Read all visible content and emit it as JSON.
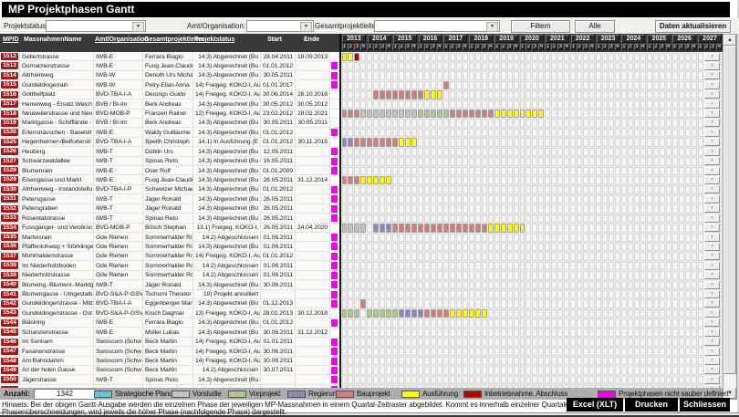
{
  "window": {
    "title": "MP Projektphasen Gantt"
  },
  "filters": {
    "projektstatus_label": "Projektstatus:",
    "amt_label": "Amt/Organisation:",
    "leiter_label": "Gesamtprojektleiter:",
    "projektstatus_value": "",
    "amt_value": "",
    "leiter_value": "",
    "filtern_button": "Filtern",
    "alle_button": "Alle",
    "refresh_button": "Daten aktualisieren"
  },
  "table": {
    "columns": [
      "MPID",
      "MassnahmenName",
      "Amt/Organisation",
      "Gesamtprojektleiter",
      "Projektstatus",
      "Start",
      "Ende"
    ],
    "rows": [
      {
        "id": "1512",
        "name": "Gellertstrasse",
        "org": "IWB-E",
        "leiter": "Ferrara Biagio",
        "status": "14.3) Abgerechnet (Bu",
        "start": "28.04.2011",
        "ende": "18.09.2013",
        "marker": false,
        "segments": [
          [
            "ausfuehrung",
            0,
            1
          ],
          [
            "inbetriebnahme",
            2,
            2
          ]
        ]
      },
      {
        "id": "1513",
        "name": "Dornacherstrasse",
        "org": "IWB-E",
        "leiter": "Fuog Jean-Claude",
        "status": "14.3) Abgerechnet (Bu",
        "start": "01.01.2012",
        "ende": "",
        "marker": true,
        "segments": []
      },
      {
        "id": "1514",
        "name": "Altrheinweg",
        "org": "IWB-W",
        "leiter": "Denoth Urs Michael",
        "status": "14.3) Abgerechnet (Bu",
        "start": "30.05.2011",
        "ende": "",
        "marker": true,
        "segments": []
      },
      {
        "id": "1515",
        "name": "Gundeldingerrain",
        "org": "IWB-W",
        "leiter": "Petry-Elias Anna",
        "status": "14) Freigeg. KOKO-I, Au",
        "start": "01.01.2017",
        "ende": "",
        "marker": true,
        "segments": [
          [
            "bauprojekt",
            16,
            16
          ]
        ]
      },
      {
        "id": "1516",
        "name": "Gotthelfplatz",
        "org": "BVD-TBA-I-A",
        "leiter": "Derungs Guido",
        "status": "14) Freigeg. KOKO-I, Au",
        "start": "30.06.2014",
        "ende": "28.10.2016",
        "marker": false,
        "segments": [
          [
            "bauprojekt",
            5,
            12
          ],
          [
            "ausfuehrung",
            13,
            15
          ]
        ]
      },
      {
        "id": "1517",
        "name": "Herrenweg - Ersatz Weich",
        "org": "BVB / BI-Im",
        "leiter": "Berk Andreas",
        "status": "14.3) Abgerechnet (Bu",
        "start": "30.05.2012",
        "ende": "30.05.2012",
        "marker": false,
        "segments": []
      },
      {
        "id": "1518",
        "name": "Neuweilerstrasse und Neu",
        "org": "BVD-MOB-P",
        "leiter": "Franzen Rainer",
        "status": "12) Freigeg. KOKO-I, Au",
        "start": "23.02.2012",
        "ende": "28.02.2021",
        "marker": false,
        "segments": [
          [
            "bauprojekt",
            0,
            2
          ],
          [
            "vorstudie",
            3,
            11
          ],
          [
            "vorprojekt",
            12,
            16
          ],
          [
            "bauprojekt",
            17,
            23
          ],
          [
            "ausfuehrung",
            24,
            31
          ]
        ]
      },
      {
        "id": "1519",
        "name": "Marktgasse - Schifflände -",
        "org": "BVB / BI-Im",
        "leiter": "Berk Andreas",
        "status": "14.3) Abgerechnet (Bu",
        "start": "30.05.2011",
        "ende": "30.05.2011",
        "marker": false,
        "segments": []
      },
      {
        "id": "1520",
        "name": "Erlensträsschen - Baselstr",
        "org": "IWB-E",
        "leiter": "Waldy Guillaume",
        "status": "14.3) Abgerechnet (Bu",
        "start": "01.01.2012",
        "ende": "",
        "marker": true,
        "segments": []
      },
      {
        "id": "1525",
        "name": "Hegenheimer-/Belforterstr",
        "org": "BVD-TBA-I-A",
        "leiter": "Speith Christoph",
        "status": "14.1) In Ausführung (E",
        "start": "01.01.2012",
        "ende": "30.11.2015",
        "marker": false,
        "segments": [
          [
            "regierung",
            0,
            1
          ],
          [
            "bauprojekt",
            2,
            8
          ],
          [
            "ausfuehrung",
            9,
            11
          ]
        ]
      },
      {
        "id": "1526",
        "name": "Heuberg",
        "org": "IWB-T",
        "leiter": "Düblin Urs",
        "status": "14.3) Abgerechnet (Bu",
        "start": "12.05.2011",
        "ende": "",
        "marker": true,
        "segments": []
      },
      {
        "id": "1527",
        "name": "Schwarzwaldallee",
        "org": "IWB-T",
        "leiter": "Spinas Reto",
        "status": "14.3) Abgerechnet (Bu",
        "start": "16.05.2011",
        "ende": "",
        "marker": true,
        "segments": []
      },
      {
        "id": "1528",
        "name": "Blumenrain",
        "org": "IWB-E",
        "leiter": "Oser Rolf",
        "status": "14.3) Abgerechnet (Bu",
        "start": "01.01.2009",
        "ende": "",
        "marker": true,
        "segments": []
      },
      {
        "id": "1529",
        "name": "Eisengasse und Markt",
        "org": "IWB-E",
        "leiter": "Fuog Jean-Claude",
        "status": "14.3) Abgerechnet (Bu",
        "start": "26.05.2011",
        "ende": "31.12.2014",
        "marker": false,
        "segments": [
          [
            "bauprojekt",
            0,
            2
          ],
          [
            "ausfuehrung",
            3,
            7
          ]
        ]
      },
      {
        "id": "1530",
        "name": "Altrheinweg - Instandstellu",
        "org": "BVD-TBA-I-P",
        "leiter": "Schweizer Michael",
        "status": "14.3) Abgerechnet (Bu",
        "start": "01.01.2012",
        "ende": "",
        "marker": true,
        "segments": []
      },
      {
        "id": "1531",
        "name": "Petersgasse",
        "org": "IWB-T",
        "leiter": "Jäger Ronald",
        "status": "14.3) Abgerechnet (Bu",
        "start": "26.05.2011",
        "ende": "",
        "marker": true,
        "segments": []
      },
      {
        "id": "1532",
        "name": "Petersgraben",
        "org": "IWB-T",
        "leiter": "Jäger Ronald",
        "status": "14.3) Abgerechnet (Bu",
        "start": "26.05.2011",
        "ende": "",
        "marker": true,
        "segments": []
      },
      {
        "id": "1533",
        "name": "Rosentalstrasse",
        "org": "IWB-T",
        "leiter": "Spinas Reto",
        "status": "14.3) Abgerechnet (Bu",
        "start": "26.05.2011",
        "ende": "",
        "marker": true,
        "segments": []
      },
      {
        "id": "1534",
        "name": "Fussgänger- und Velobrüc",
        "org": "BVD-MOB-P",
        "leiter": "Bösch Stephan",
        "status": "13.1) Freigeg. KOKO-I,",
        "start": "26.05.2011",
        "ende": "24.04.2020",
        "marker": false,
        "segments": [
          [
            "vorstudie",
            0,
            3
          ],
          [
            "regierung",
            5,
            7
          ],
          [
            "bauprojekt",
            8,
            22
          ],
          [
            "ausfuehrung",
            23,
            28
          ]
        ]
      },
      {
        "id": "1535",
        "name": "Martinsrain",
        "org": "Gde Riehen",
        "leiter": "Sommerhalder Rog",
        "status": "14.2) Abgeschlossen",
        "start": "01.06.2011",
        "ende": "",
        "marker": true,
        "segments": []
      },
      {
        "id": "1536",
        "name": "Pfaffenlohweg + Störklinge",
        "org": "Gde Riehen",
        "leiter": "Sommerhalder Rog",
        "status": "14.3) Abgerechnet (Bu",
        "start": "01.06.2011",
        "ende": "",
        "marker": true,
        "segments": []
      },
      {
        "id": "1537",
        "name": "Mohrhaldenstrasse",
        "org": "Gde Riehen",
        "leiter": "Sommerhalder Rog",
        "status": "14) Freigeg. KOKO-I, Au",
        "start": "01.01.2012",
        "ende": "",
        "marker": true,
        "segments": []
      },
      {
        "id": "1538",
        "name": "Im Niederholzboden",
        "org": "Gde Riehen",
        "leiter": "Sommerhalder Rog",
        "status": "14.2) Abgeschlossen",
        "start": "01.06.2011",
        "ende": "",
        "marker": true,
        "segments": []
      },
      {
        "id": "1539",
        "name": "Niederholzstrasse",
        "org": "Gde Riehen",
        "leiter": "Sommerhalder Rog",
        "status": "14.2) Abgeschlossen",
        "start": "01.06.2011",
        "ende": "",
        "marker": true,
        "segments": []
      },
      {
        "id": "1540",
        "name": "Blumeng.-Blumenr.-Marktg.",
        "org": "IWB-T",
        "leiter": "Jäger Ronald",
        "status": "14.3) Abgerechnet (Bu",
        "start": "30.06.2011",
        "ende": "",
        "marker": true,
        "segments": []
      },
      {
        "id": "1541",
        "name": "Blumengasse - Umgestaltu",
        "org": "BVD-S&A-P-GSV",
        "leiter": "Tschumi Theodor",
        "status": "19) Projekt annulliert",
        "start": "",
        "ende": "",
        "marker": true,
        "segments": []
      },
      {
        "id": "1542",
        "name": "Gundeldingerstrasse - Mitt",
        "org": "BVD-TBA-I-A",
        "leiter": "Eggenberger Manu",
        "status": "14.3) Abgerechnet (Bu",
        "start": "01.12.2013",
        "ende": "",
        "marker": true,
        "segments": [
          [
            "bauprojekt",
            3,
            3
          ]
        ]
      },
      {
        "id": "1543",
        "name": "Gundeldingerstrasse - Ost",
        "org": "BVD-S&A-P-GSV",
        "leiter": "Kruch Dagmar",
        "status": "13) Freigeg. KOKO-I, Au",
        "start": "28.02.2013",
        "ende": "30.12.2018",
        "marker": false,
        "segments": [
          [
            "vorprojekt",
            0,
            2
          ],
          [
            "vorprojekt",
            4,
            8
          ],
          [
            "regierung",
            9,
            12
          ],
          [
            "bauprojekt",
            13,
            16
          ],
          [
            "ausfuehrung",
            17,
            22
          ]
        ]
      },
      {
        "id": "1544",
        "name": "Bläsiring",
        "org": "IWB-E",
        "leiter": "Ferrara Biagio",
        "status": "14.3) Abgerechnet (Bu",
        "start": "01.01.2012",
        "ende": "",
        "marker": true,
        "segments": []
      },
      {
        "id": "1545",
        "name": "Schanzenstrasse",
        "org": "IWB-E",
        "leiter": "Müller Lukas",
        "status": "14.3) Abgerechnet (Bu",
        "start": "30.06.2011",
        "ende": "31.12.2012",
        "marker": false,
        "segments": []
      },
      {
        "id": "1546",
        "name": "Im Surinam",
        "org": "Swisscom (Schw",
        "leiter": "Beck Martin",
        "status": "14) Freigeg. KOKO-I, Au",
        "start": "01.01.2011",
        "ende": "",
        "marker": true,
        "segments": []
      },
      {
        "id": "1547",
        "name": "Fasanenstrasse",
        "org": "Swisscom (Schw",
        "leiter": "Beck Martin",
        "status": "14) Freigeg. KOKO-I, Au",
        "start": "30.06.2011",
        "ende": "",
        "marker": true,
        "segments": []
      },
      {
        "id": "1548",
        "name": "Am Bahndamm",
        "org": "Swisscom (Schw",
        "leiter": "Beck Martin",
        "status": "14) Freigeg. KOKO-I, Au",
        "start": "30.06.2011",
        "ende": "",
        "marker": true,
        "segments": []
      },
      {
        "id": "1549",
        "name": "An der holen Gasse",
        "org": "Swisscom (Schw",
        "leiter": "Beck Martin",
        "status": "14.2) Abgeschlossen",
        "start": "30.07.2011",
        "ende": "",
        "marker": true,
        "segments": []
      },
      {
        "id": "1550",
        "name": "Jägerstrasse",
        "org": "IWB-T",
        "leiter": "Spinas Reto",
        "status": "14.3) Abgerechnet (Bu",
        "start": "",
        "ende": "",
        "marker": true,
        "segments": []
      },
      {
        "id": "",
        "name": "",
        "org": "",
        "leiter": "",
        "status": "",
        "start": "",
        "ende": "",
        "marker": true,
        "segments": []
      }
    ]
  },
  "gantt": {
    "years": [
      "2013",
      "2014",
      "2015",
      "2016",
      "2017",
      "2018",
      "2019",
      "2020",
      "2021",
      "2022",
      "2023",
      "2024",
      "2025",
      "2026",
      "2027"
    ],
    "quarter_labels": [
      "1",
      "2",
      "3",
      "4"
    ],
    "row_button_glyph": "›",
    "phase_colors": {
      "strategische": "#62c6dc",
      "vorstudie": "#c3c3c3",
      "vorprojekt": "#afc98b",
      "regierung": "#9484be",
      "bauprojekt": "#d07f7c",
      "ausfuehrung": "#ffff00",
      "inbetriebnahme": "#b60000",
      "undefiniert": "#f800f8"
    }
  },
  "footer": {
    "anzahl_label": "Anzahl:",
    "anzahl_value": "1342",
    "legend": [
      {
        "key": "strategische",
        "label": "Strategische Planung"
      },
      {
        "key": "vorstudie",
        "label": "Vorstudie"
      },
      {
        "key": "vorprojekt",
        "label": "Vorprojekt"
      },
      {
        "key": "regierung",
        "label": "Regierung"
      },
      {
        "key": "bauprojekt",
        "label": "Bauprojekt"
      },
      {
        "key": "ausfuehrung",
        "label": "Ausführung"
      },
      {
        "key": "inbetriebnahme",
        "label": "Inbetriebnahme, Abschluss"
      },
      {
        "key": "undefiniert",
        "label": "Projektphasen nicht sauber definiert"
      }
    ],
    "hinweis_line1": "Hinweis: Bei der obigen Gantt-Ausgabe werden die einzelnen Phase der jeweiligen MP-Massnahmen in einem Quartal-Zeitraster abgebildet. Kommt es innerhalb einzelner Quartale eines MP zu",
    "hinweis_line2": "Phasenüberschneidungen, wird jeweils die höher Phase (nachfolgende Phase) dargestellt.",
    "excel_button": "Excel (XLT)",
    "drucken_button": "Drucken",
    "schliessen_button": "Schliessen"
  }
}
